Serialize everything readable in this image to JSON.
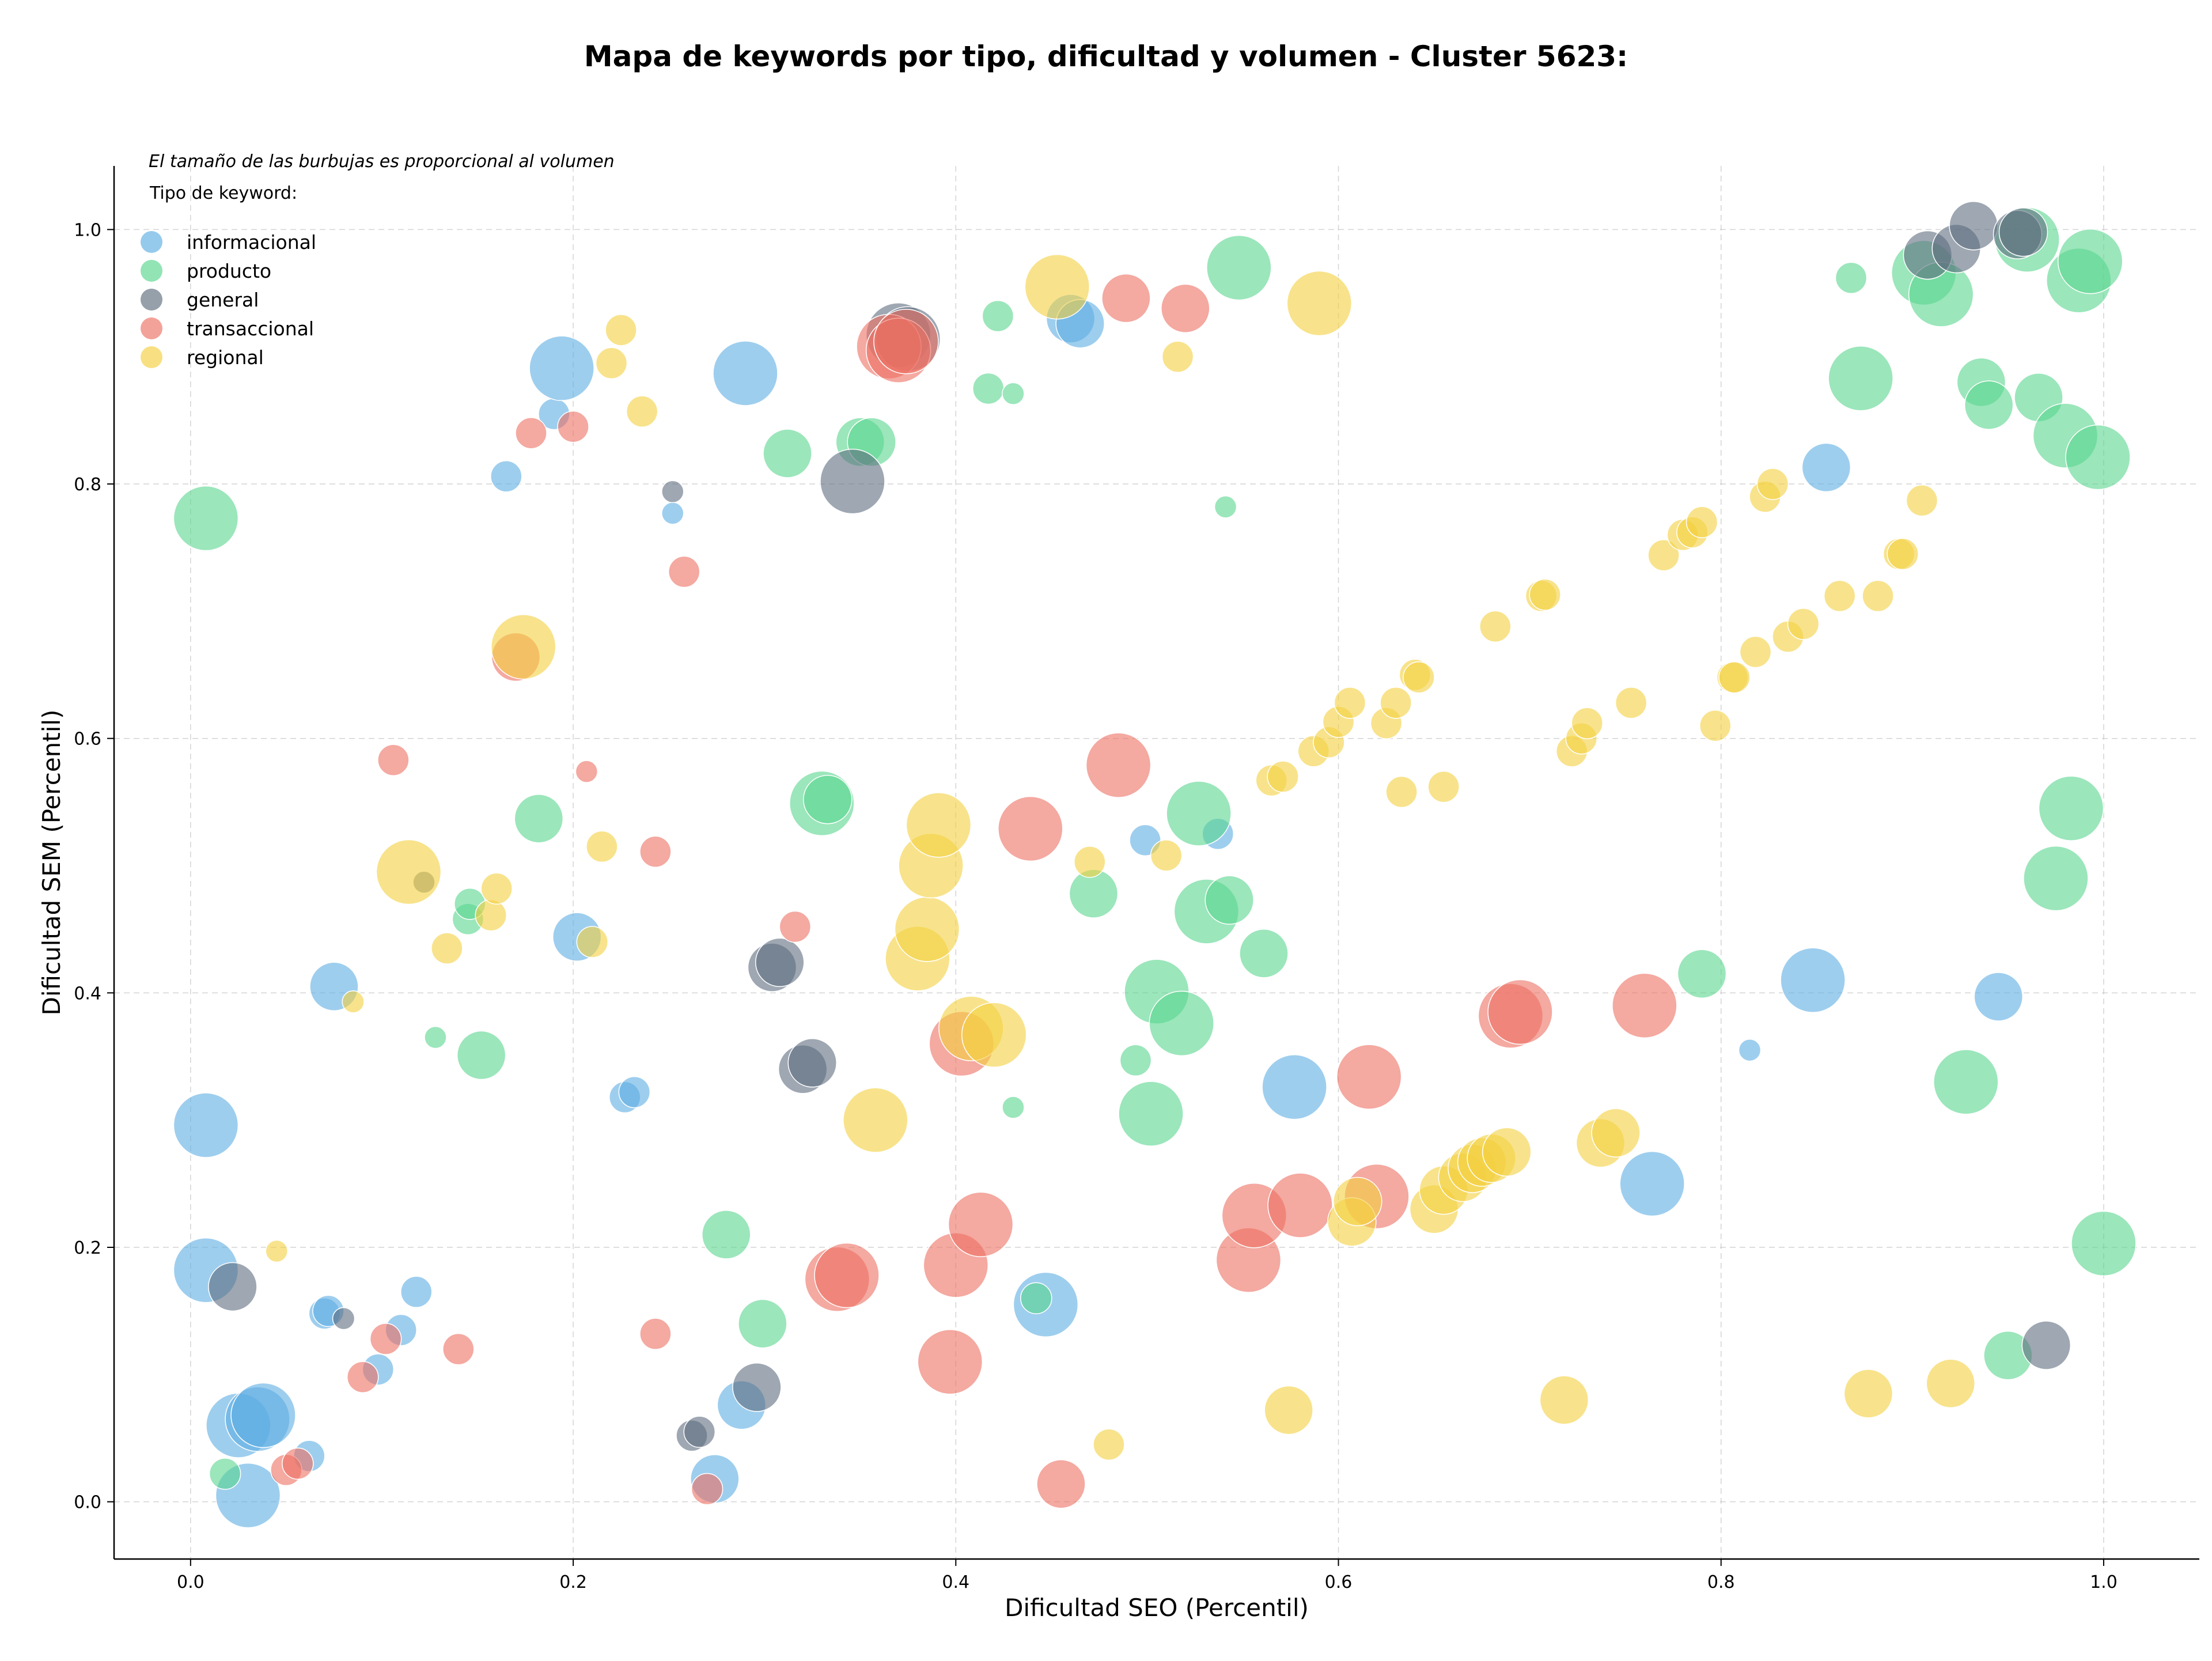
{
  "chart_data": {
    "type": "scatter",
    "title": "Mapa de keywords por tipo, dificultad y volumen - Cluster 5623:",
    "note": "El tamaño de las burbujas es proporcional al volumen",
    "xlabel": "Dificultad SEO (Percentil)",
    "ylabel": "Dificultad SEM (Percentil)",
    "xlim": [
      -0.04,
      1.05
    ],
    "ylim": [
      -0.045,
      1.05
    ],
    "xticks": [
      "0.0",
      "0.2",
      "0.4",
      "0.6",
      "0.8",
      "1.0"
    ],
    "yticks": [
      "0.0",
      "0.2",
      "0.4",
      "0.6",
      "0.8",
      "1.0"
    ],
    "grid": true,
    "legend_title": "Tipo de keyword:",
    "legend_position": "top-left",
    "size_scale": "bubble size proportional to volume (relative 1-5)",
    "series": [
      {
        "name": "informacional",
        "color": "#5DADE2",
        "points": [
          [
            0.008,
            0.296,
            4
          ],
          [
            0.008,
            0.182,
            4
          ],
          [
            0.025,
            0.06,
            4
          ],
          [
            0.03,
            0.005,
            4
          ],
          [
            0.035,
            0.065,
            4
          ],
          [
            0.038,
            0.068,
            4
          ],
          [
            0.07,
            0.148,
            2
          ],
          [
            0.072,
            0.15,
            2
          ],
          [
            0.062,
            0.036,
            2
          ],
          [
            0.075,
            0.405,
            3
          ],
          [
            0.11,
            0.135,
            2
          ],
          [
            0.118,
            0.165,
            2
          ],
          [
            0.098,
            0.104,
            2
          ],
          [
            0.165,
            0.806,
            2
          ],
          [
            0.19,
            0.855,
            2
          ],
          [
            0.194,
            0.891,
            4
          ],
          [
            0.202,
            0.444,
            3
          ],
          [
            0.227,
            0.318,
            2
          ],
          [
            0.232,
            0.322,
            2
          ],
          [
            0.252,
            0.777,
            1
          ],
          [
            0.274,
            0.018,
            3
          ],
          [
            0.288,
            0.076,
            3
          ],
          [
            0.29,
            0.887,
            4
          ],
          [
            0.447,
            0.155,
            4
          ],
          [
            0.46,
            0.93,
            3
          ],
          [
            0.465,
            0.926,
            3
          ],
          [
            0.499,
            0.52,
            2
          ],
          [
            0.537,
            0.525,
            2
          ],
          [
            0.577,
            0.326,
            4
          ],
          [
            0.764,
            0.25,
            4
          ],
          [
            0.815,
            0.355,
            1
          ],
          [
            0.848,
            0.41,
            4
          ],
          [
            0.855,
            0.813,
            3
          ],
          [
            0.945,
            0.397,
            3
          ]
        ]
      },
      {
        "name": "producto",
        "color": "#58D68D",
        "points": [
          [
            0.008,
            0.773,
            4
          ],
          [
            0.018,
            0.022,
            2
          ],
          [
            0.128,
            0.365,
            1
          ],
          [
            0.145,
            0.458,
            2
          ],
          [
            0.146,
            0.47,
            2
          ],
          [
            0.152,
            0.351,
            3
          ],
          [
            0.182,
            0.537,
            3
          ],
          [
            0.28,
            0.21,
            3
          ],
          [
            0.299,
            0.14,
            3
          ],
          [
            0.312,
            0.824,
            3
          ],
          [
            0.33,
            0.549,
            4
          ],
          [
            0.333,
            0.552,
            3
          ],
          [
            0.35,
            0.833,
            3
          ],
          [
            0.356,
            0.833,
            3
          ],
          [
            0.417,
            0.875,
            2
          ],
          [
            0.422,
            0.932,
            2
          ],
          [
            0.43,
            0.871,
            1
          ],
          [
            0.43,
            0.31,
            1
          ],
          [
            0.442,
            0.16,
            2
          ],
          [
            0.472,
            0.478,
            3
          ],
          [
            0.494,
            0.347,
            2
          ],
          [
            0.502,
            0.305,
            4
          ],
          [
            0.505,
            0.401,
            4
          ],
          [
            0.518,
            0.376,
            4
          ],
          [
            0.527,
            0.541,
            4
          ],
          [
            0.531,
            0.464,
            4
          ],
          [
            0.541,
            0.782,
            1
          ],
          [
            0.543,
            0.473,
            3
          ],
          [
            0.548,
            0.97,
            4
          ],
          [
            0.561,
            0.431,
            3
          ],
          [
            0.868,
            0.962,
            2
          ],
          [
            0.873,
            0.883,
            4
          ],
          [
            0.79,
            0.415,
            3
          ],
          [
            0.906,
            0.966,
            4
          ],
          [
            0.915,
            0.949,
            4
          ],
          [
            0.928,
            0.33,
            4
          ],
          [
            0.936,
            0.88,
            3
          ],
          [
            0.94,
            0.862,
            3
          ],
          [
            0.95,
            0.115,
            3
          ],
          [
            0.96,
            0.992,
            4
          ],
          [
            0.966,
            0.868,
            3
          ],
          [
            0.975,
            0.49,
            4
          ],
          [
            0.98,
            0.838,
            4
          ],
          [
            0.983,
            0.545,
            4
          ],
          [
            0.987,
            0.96,
            4
          ],
          [
            0.993,
            0.975,
            4
          ],
          [
            0.997,
            0.821,
            4
          ],
          [
            1.0,
            0.203,
            4
          ]
        ]
      },
      {
        "name": "general",
        "color": "#5D6D7E",
        "points": [
          [
            0.022,
            0.169,
            3
          ],
          [
            0.08,
            0.144,
            1
          ],
          [
            0.122,
            0.487,
            1
          ],
          [
            0.252,
            0.794,
            1
          ],
          [
            0.262,
            0.052,
            2
          ],
          [
            0.266,
            0.055,
            2
          ],
          [
            0.296,
            0.09,
            3
          ],
          [
            0.304,
            0.42,
            3
          ],
          [
            0.308,
            0.424,
            3
          ],
          [
            0.32,
            0.34,
            3
          ],
          [
            0.325,
            0.345,
            3
          ],
          [
            0.346,
            0.802,
            4
          ],
          [
            0.37,
            0.917,
            4
          ],
          [
            0.375,
            0.914,
            4
          ],
          [
            0.908,
            0.98,
            3
          ],
          [
            0.923,
            0.985,
            3
          ],
          [
            0.932,
            1.003,
            3
          ],
          [
            0.955,
            0.996,
            3
          ],
          [
            0.958,
            0.998,
            3
          ],
          [
            0.97,
            0.123,
            3
          ]
        ]
      },
      {
        "name": "transaccional",
        "color": "#EC7063",
        "points": [
          [
            0.05,
            0.025,
            2
          ],
          [
            0.056,
            0.03,
            2
          ],
          [
            0.09,
            0.098,
            2
          ],
          [
            0.102,
            0.128,
            2
          ],
          [
            0.106,
            0.583,
            2
          ],
          [
            0.14,
            0.12,
            2
          ],
          [
            0.17,
            0.664,
            3
          ],
          [
            0.178,
            0.84,
            2
          ],
          [
            0.2,
            0.845,
            2
          ],
          [
            0.207,
            0.574,
            1
          ],
          [
            0.243,
            0.511,
            2
          ],
          [
            0.243,
            0.132,
            2
          ],
          [
            0.258,
            0.731,
            2
          ],
          [
            0.27,
            0.01,
            2
          ],
          [
            0.316,
            0.452,
            2
          ],
          [
            0.338,
            0.175,
            4
          ],
          [
            0.343,
            0.178,
            4
          ],
          [
            0.365,
            0.908,
            4
          ],
          [
            0.37,
            0.905,
            4
          ],
          [
            0.374,
            0.912,
            4
          ],
          [
            0.397,
            0.11,
            4
          ],
          [
            0.4,
            0.186,
            4
          ],
          [
            0.403,
            0.36,
            4
          ],
          [
            0.413,
            0.218,
            4
          ],
          [
            0.439,
            0.529,
            4
          ],
          [
            0.455,
            0.014,
            3
          ],
          [
            0.485,
            0.579,
            4
          ],
          [
            0.489,
            0.946,
            3
          ],
          [
            0.52,
            0.938,
            3
          ],
          [
            0.553,
            0.19,
            4
          ],
          [
            0.556,
            0.225,
            4
          ],
          [
            0.58,
            0.233,
            4
          ],
          [
            0.616,
            0.334,
            4
          ],
          [
            0.62,
            0.24,
            4
          ],
          [
            0.69,
            0.382,
            4
          ],
          [
            0.695,
            0.385,
            4
          ],
          [
            0.76,
            0.39,
            4
          ]
        ]
      },
      {
        "name": "regional",
        "color": "#F4D03F",
        "points": [
          [
            0.045,
            0.197,
            1
          ],
          [
            0.085,
            0.393,
            1
          ],
          [
            0.114,
            0.495,
            4
          ],
          [
            0.134,
            0.435,
            2
          ],
          [
            0.157,
            0.461,
            2
          ],
          [
            0.16,
            0.482,
            2
          ],
          [
            0.174,
            0.672,
            4
          ],
          [
            0.21,
            0.44,
            2
          ],
          [
            0.215,
            0.515,
            2
          ],
          [
            0.22,
            0.895,
            2
          ],
          [
            0.225,
            0.921,
            2
          ],
          [
            0.236,
            0.857,
            2
          ],
          [
            0.358,
            0.3,
            4
          ],
          [
            0.38,
            0.427,
            4
          ],
          [
            0.385,
            0.45,
            4
          ],
          [
            0.387,
            0.5,
            4
          ],
          [
            0.391,
            0.532,
            4
          ],
          [
            0.408,
            0.372,
            4
          ],
          [
            0.42,
            0.367,
            4
          ],
          [
            0.453,
            0.955,
            4
          ],
          [
            0.47,
            0.503,
            2
          ],
          [
            0.48,
            0.045,
            2
          ],
          [
            0.51,
            0.508,
            2
          ],
          [
            0.516,
            0.9,
            2
          ],
          [
            0.574,
            0.072,
            3
          ],
          [
            0.59,
            0.942,
            4
          ],
          [
            0.565,
            0.567,
            2
          ],
          [
            0.571,
            0.57,
            2
          ],
          [
            0.587,
            0.59,
            2
          ],
          [
            0.595,
            0.597,
            2
          ],
          [
            0.6,
            0.613,
            2
          ],
          [
            0.606,
            0.628,
            2
          ],
          [
            0.607,
            0.22,
            3
          ],
          [
            0.61,
            0.236,
            3
          ],
          [
            0.625,
            0.612,
            2
          ],
          [
            0.63,
            0.628,
            2
          ],
          [
            0.633,
            0.558,
            2
          ],
          [
            0.64,
            0.65,
            2
          ],
          [
            0.642,
            0.648,
            2
          ],
          [
            0.65,
            0.23,
            3
          ],
          [
            0.655,
            0.245,
            3
          ],
          [
            0.665,
            0.255,
            3
          ],
          [
            0.67,
            0.262,
            3
          ],
          [
            0.675,
            0.267,
            3
          ],
          [
            0.68,
            0.27,
            3
          ],
          [
            0.688,
            0.275,
            3
          ],
          [
            0.655,
            0.562,
            2
          ],
          [
            0.682,
            0.688,
            2
          ],
          [
            0.706,
            0.712,
            2
          ],
          [
            0.708,
            0.713,
            2
          ],
          [
            0.718,
            0.08,
            3
          ],
          [
            0.722,
            0.59,
            2
          ],
          [
            0.727,
            0.6,
            2
          ],
          [
            0.73,
            0.612,
            2
          ],
          [
            0.737,
            0.282,
            3
          ],
          [
            0.745,
            0.29,
            3
          ],
          [
            0.753,
            0.628,
            2
          ],
          [
            0.77,
            0.744,
            2
          ],
          [
            0.78,
            0.76,
            2
          ],
          [
            0.785,
            0.762,
            2
          ],
          [
            0.79,
            0.77,
            2
          ],
          [
            0.797,
            0.61,
            2
          ],
          [
            0.806,
            0.648,
            2
          ],
          [
            0.807,
            0.648,
            2
          ],
          [
            0.818,
            0.668,
            2
          ],
          [
            0.823,
            0.79,
            2
          ],
          [
            0.827,
            0.8,
            2
          ],
          [
            0.835,
            0.68,
            2
          ],
          [
            0.843,
            0.69,
            2
          ],
          [
            0.862,
            0.712,
            2
          ],
          [
            0.877,
            0.085,
            3
          ],
          [
            0.882,
            0.712,
            2
          ],
          [
            0.893,
            0.745,
            2
          ],
          [
            0.895,
            0.745,
            2
          ],
          [
            0.905,
            0.787,
            2
          ],
          [
            0.92,
            0.093,
            3
          ]
        ]
      }
    ]
  }
}
